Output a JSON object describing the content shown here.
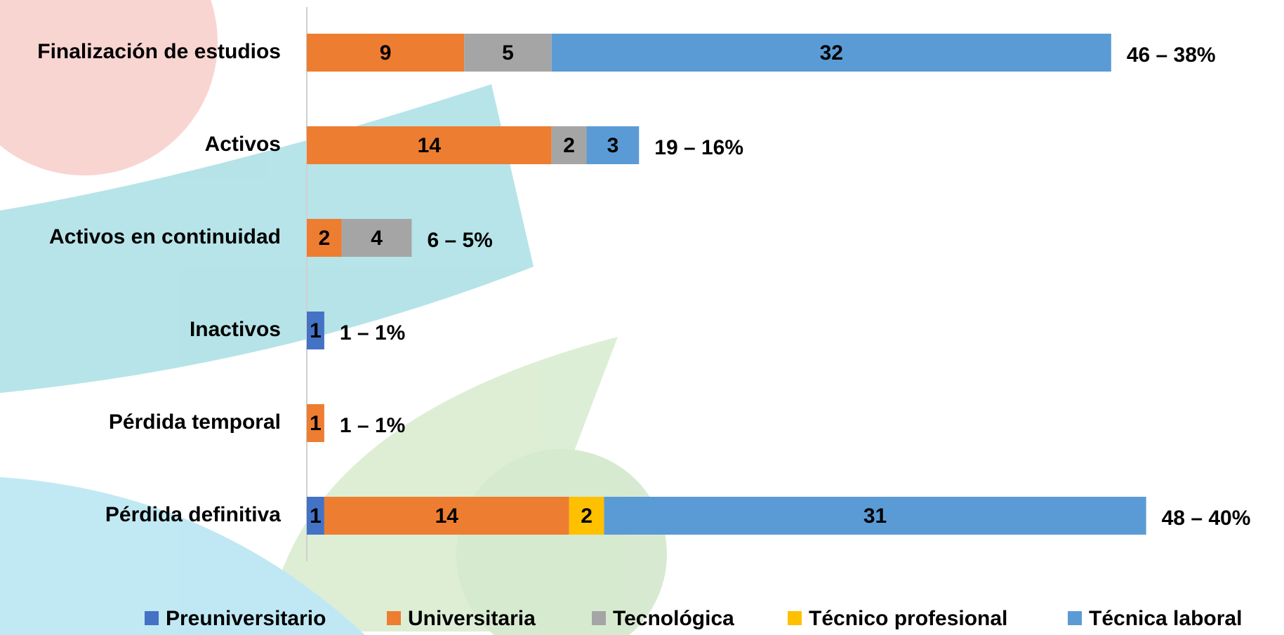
{
  "chart_data": {
    "type": "stacked-barh",
    "categories": [
      "Finalización de estudios",
      "Activos",
      "Activos en continuidad",
      "Inactivos",
      "Pérdida temporal",
      "Pérdida definitiva"
    ],
    "series": [
      {
        "name": "Preuniversitario",
        "color": "#4472c4",
        "values": [
          null,
          null,
          null,
          1,
          null,
          1
        ]
      },
      {
        "name": "Universitaria",
        "color": "#ed7d31",
        "values": [
          9,
          14,
          2,
          null,
          1,
          14
        ]
      },
      {
        "name": "Tecnológica",
        "color": "#a5a5a5",
        "values": [
          5,
          2,
          4,
          null,
          null,
          null
        ]
      },
      {
        "name": "Técnico profesional",
        "color": "#ffc000",
        "values": [
          null,
          null,
          null,
          null,
          null,
          2
        ]
      },
      {
        "name": "Técnica laboral",
        "color": "#5b9bd5",
        "values": [
          32,
          3,
          null,
          null,
          null,
          31
        ]
      }
    ],
    "total_labels": [
      "46 – 38%",
      "19 – 16%",
      "6 –  5%",
      "1 –  1%",
      "1 –  1%",
      "48 –  40%"
    ],
    "xlim": [
      0,
      55
    ],
    "legend": "bottom"
  }
}
